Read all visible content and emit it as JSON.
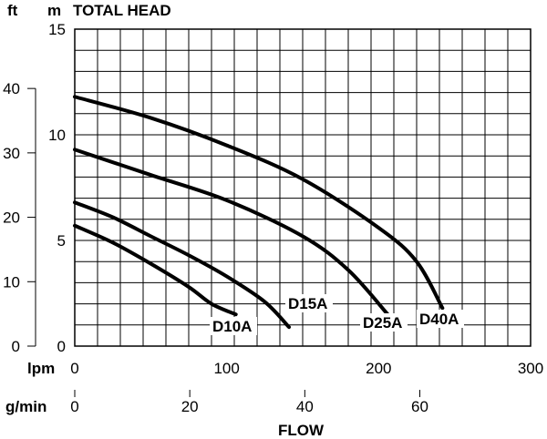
{
  "chart_data": {
    "type": "line",
    "title": "TOTAL HEAD",
    "xlabel": "FLOW",
    "x_unit_primary": "lpm",
    "x_unit_secondary": "g/min",
    "y_unit_primary": "m",
    "y_unit_secondary": "ft",
    "xlim": [
      0,
      300
    ],
    "ylim": [
      0,
      15
    ],
    "grid": true,
    "x_ticks_lpm": [
      "0",
      "100",
      "200",
      "300"
    ],
    "x_ticks_gmin": [
      "0",
      "20",
      "40",
      "60"
    ],
    "x_ticks_gmin_values": [
      0,
      20,
      40,
      60
    ],
    "y_ticks_m": [
      "0",
      "5",
      "10",
      "15"
    ],
    "y_ticks_ft": [
      "0",
      "10",
      "20",
      "30",
      "40"
    ],
    "y_ticks_ft_values": [
      0,
      10,
      20,
      30,
      40
    ],
    "series": [
      {
        "name": "D10A",
        "x": [
          0,
          25,
          50,
          75,
          90,
          106
        ],
        "y": [
          5.7,
          4.9,
          3.9,
          2.8,
          2.0,
          1.5
        ]
      },
      {
        "name": "D15A",
        "x": [
          0,
          25,
          50,
          75,
          100,
          125,
          141
        ],
        "y": [
          6.8,
          6.1,
          5.2,
          4.3,
          3.3,
          2.1,
          0.9
        ]
      },
      {
        "name": "D25A",
        "x": [
          0,
          50,
          100,
          150,
          180,
          206
        ],
        "y": [
          9.3,
          8.1,
          6.9,
          5.2,
          3.6,
          1.5
        ]
      },
      {
        "name": "D40A",
        "x": [
          0,
          50,
          100,
          150,
          200,
          225,
          242
        ],
        "y": [
          11.8,
          10.8,
          9.5,
          7.9,
          5.6,
          4.0,
          1.8
        ]
      }
    ]
  }
}
